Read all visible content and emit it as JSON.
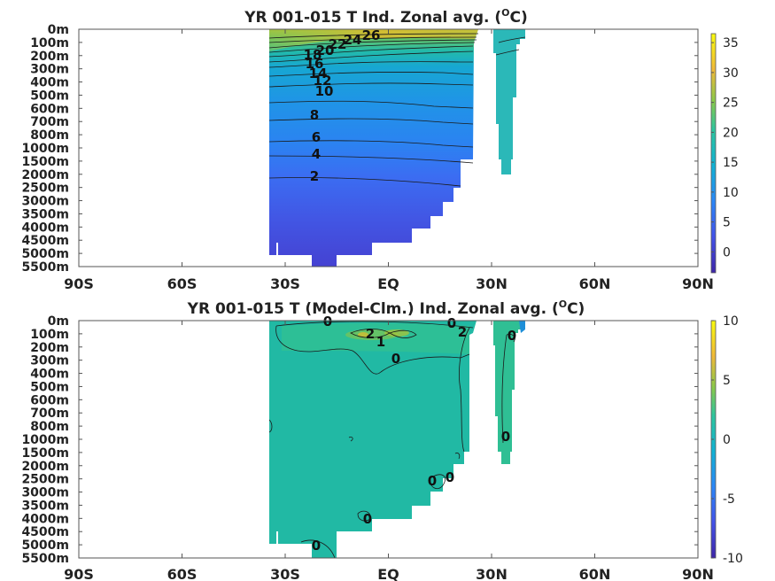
{
  "chart_data": [
    {
      "type": "heatmap",
      "title_main": "YR 001-015 T Ind. Zonal avg. (",
      "title_sup": "O",
      "title_end": "C)",
      "xticks": [
        "90S",
        "60S",
        "30S",
        "EQ",
        "30N",
        "60N",
        "90N"
      ],
      "yticks": [
        "0m",
        "100m",
        "200m",
        "300m",
        "400m",
        "500m",
        "600m",
        "700m",
        "800m",
        "1000m",
        "1500m",
        "2000m",
        "2500m",
        "3000m",
        "3500m",
        "4000m",
        "4500m",
        "5000m",
        "5500m"
      ],
      "colorbar": {
        "min": -3.5,
        "max": 36.5,
        "ticks": [
          35,
          30,
          25,
          20,
          15,
          10,
          5,
          0
        ]
      },
      "contour_labels": [
        "26",
        "24",
        "22",
        "20",
        "18",
        "16",
        "14",
        "12",
        "10",
        "8",
        "6",
        "4",
        "2"
      ]
    },
    {
      "type": "heatmap",
      "title_main": "YR 001-015 T (Model-Clm.) Ind. Zonal avg. (",
      "title_sup": "O",
      "title_end": "C)",
      "xticks": [
        "90S",
        "60S",
        "30S",
        "EQ",
        "30N",
        "60N",
        "90N"
      ],
      "yticks": [
        "0m",
        "100m",
        "200m",
        "300m",
        "400m",
        "500m",
        "600m",
        "700m",
        "800m",
        "1000m",
        "1500m",
        "2000m",
        "2500m",
        "3000m",
        "3500m",
        "4000m",
        "4500m",
        "5000m",
        "5500m"
      ],
      "colorbar": {
        "min": -10,
        "max": 10,
        "ticks": [
          10,
          5,
          0,
          -5,
          -10
        ]
      },
      "contour_labels": [
        "0",
        "0",
        "2",
        "1",
        "0",
        "2",
        "0",
        "0",
        "0",
        "0",
        "0",
        "0"
      ]
    }
  ],
  "colors": {
    "frame": "#555555",
    "background": "#ffffff"
  }
}
